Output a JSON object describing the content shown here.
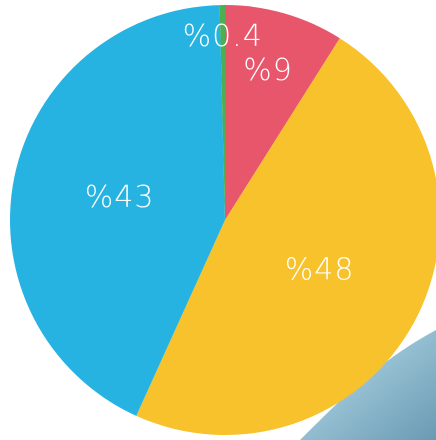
{
  "chart_data": {
    "type": "pie",
    "categories": [
      null,
      null,
      null,
      null
    ],
    "values": [
      9,
      48,
      43,
      0.4
    ],
    "value_labels": [
      "%9",
      "%48",
      "%43",
      "%0.4"
    ],
    "colors": [
      "#e8566c",
      "#f8c22c",
      "#27b3e2",
      "#4caf50"
    ]
  }
}
